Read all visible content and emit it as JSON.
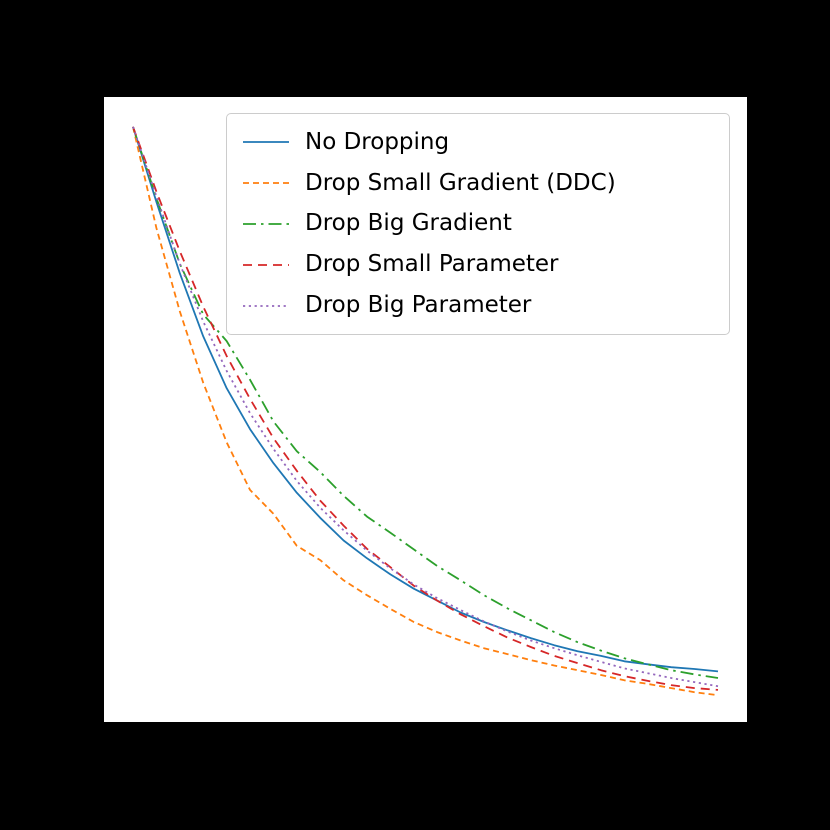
{
  "figure": {
    "background": "#000000",
    "plot_background": "#ffffff"
  },
  "chart_data": {
    "type": "line",
    "title": "",
    "xlabel": "",
    "ylabel": "",
    "xlim": [
      0,
      100
    ],
    "ylim": [
      0,
      1.05
    ],
    "grid": false,
    "legend_position": "upper left inside",
    "x": [
      0,
      4,
      8,
      12,
      16,
      20,
      24,
      28,
      32,
      36,
      40,
      44,
      48,
      52,
      56,
      60,
      64,
      68,
      72,
      76,
      80,
      84,
      88,
      92,
      96,
      100
    ],
    "series": [
      {
        "name": "No Dropping",
        "color": "#1f77b4",
        "linestyle": "solid",
        "values": [
          1.0,
          0.874,
          0.754,
          0.648,
          0.561,
          0.492,
          0.435,
          0.385,
          0.343,
          0.305,
          0.275,
          0.248,
          0.224,
          0.204,
          0.184,
          0.168,
          0.154,
          0.141,
          0.129,
          0.119,
          0.111,
          0.102,
          0.097,
          0.092,
          0.089,
          0.085
        ]
      },
      {
        "name": "Drop Small Gradient (DDC)",
        "color": "#ff7f0e",
        "linestyle": "dashed",
        "values": [
          1.0,
          0.83,
          0.69,
          0.57,
          0.47,
          0.39,
          0.35,
          0.296,
          0.272,
          0.238,
          0.213,
          0.19,
          0.168,
          0.151,
          0.137,
          0.124,
          0.114,
          0.104,
          0.095,
          0.087,
          0.079,
          0.07,
          0.064,
          0.057,
          0.05,
          0.045
        ]
      },
      {
        "name": "Drop Big Gradient",
        "color": "#2ca02c",
        "linestyle": "dashdot",
        "values": [
          1.0,
          0.88,
          0.77,
          0.685,
          0.64,
          0.575,
          0.505,
          0.455,
          0.42,
          0.38,
          0.345,
          0.318,
          0.29,
          0.262,
          0.238,
          0.213,
          0.191,
          0.171,
          0.151,
          0.134,
          0.12,
          0.107,
          0.097,
          0.087,
          0.08,
          0.074
        ]
      },
      {
        "name": "Drop Small Parameter",
        "color": "#d62728",
        "linestyle": "dashed-long",
        "values": [
          1.0,
          0.891,
          0.791,
          0.698,
          0.615,
          0.543,
          0.477,
          0.422,
          0.372,
          0.33,
          0.291,
          0.26,
          0.229,
          0.204,
          0.181,
          0.161,
          0.142,
          0.126,
          0.111,
          0.099,
          0.087,
          0.077,
          0.069,
          0.062,
          0.057,
          0.054
        ]
      },
      {
        "name": "Drop Big Parameter",
        "color": "#9467bd",
        "linestyle": "dotted",
        "values": [
          1.0,
          0.883,
          0.77,
          0.673,
          0.59,
          0.519,
          0.459,
          0.405,
          0.36,
          0.322,
          0.288,
          0.258,
          0.231,
          0.208,
          0.188,
          0.169,
          0.152,
          0.137,
          0.124,
          0.112,
          0.101,
          0.09,
          0.082,
          0.074,
          0.067,
          0.06
        ]
      }
    ]
  }
}
